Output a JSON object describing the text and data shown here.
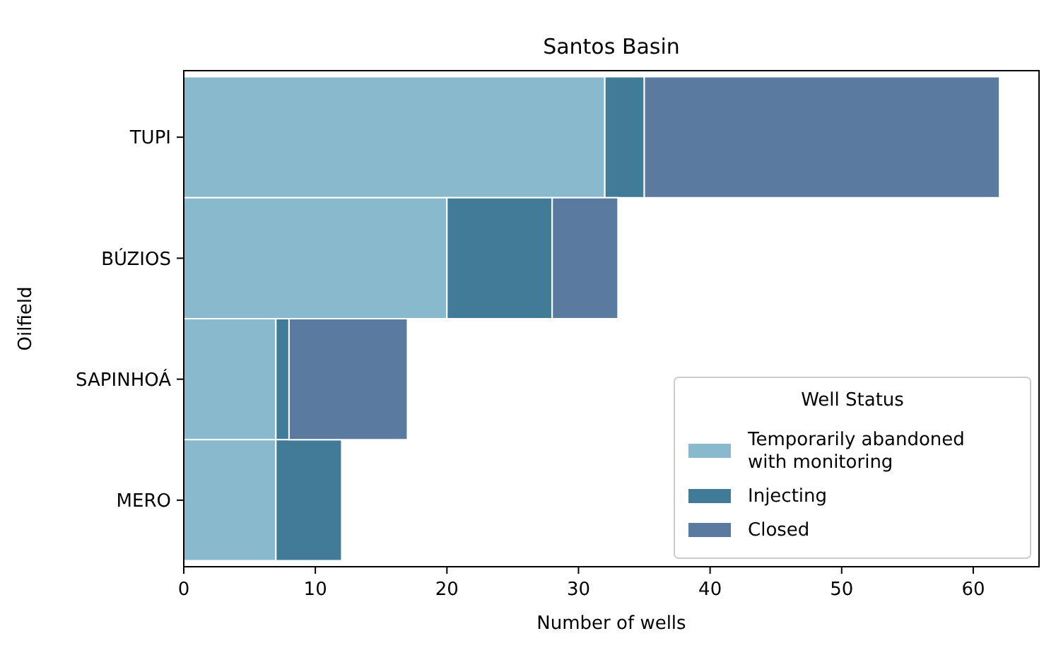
{
  "chart_data": {
    "type": "bar",
    "orientation": "horizontal",
    "stacked": true,
    "title": "Santos Basin",
    "xlabel": "Number of wells",
    "ylabel": "Oilfield",
    "legend_title": "Well Status",
    "legend": "bottom right",
    "categories": [
      "TUPI",
      "BÚZIOS",
      "SAPINHOÁ",
      "MERO"
    ],
    "xlim": [
      0,
      65
    ],
    "xticks": [
      0,
      10,
      20,
      30,
      40,
      50,
      60
    ],
    "series": [
      {
        "name": "Temporarily abandoned\nwith monitoring",
        "color": "#89b9cc",
        "values": [
          32,
          20,
          7,
          7
        ]
      },
      {
        "name": "Injecting",
        "color": "#407b97",
        "values": [
          3,
          8,
          1,
          5
        ]
      },
      {
        "name": "Closed",
        "color": "#5a7aa0",
        "values": [
          27,
          5,
          9,
          0
        ]
      }
    ]
  }
}
